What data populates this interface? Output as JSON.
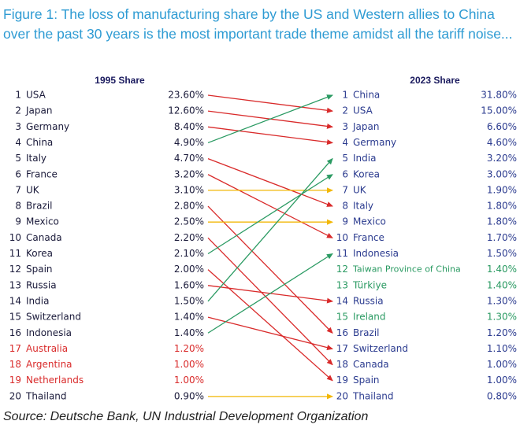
{
  "title": "Figure 1: The loss of manufacturing share by the US and Western allies to China over the past 30 years is the most important trade theme amidst all the tariff noise...",
  "source": "Source: Deutsche Bank, UN Industrial Development Organization",
  "colors": {
    "red": "#d92b2b",
    "green": "#2a9a62",
    "yellow": "#f2b705",
    "blue_text": "#2b3b8f",
    "dark_text": "#1a1a3a",
    "title": "#2e9bd3"
  },
  "chart_data": {
    "type": "table",
    "headers": {
      "left": "1995 Share",
      "right": "2023 Share"
    },
    "left": [
      {
        "rank": "1",
        "country": "USA",
        "value": "23.60%",
        "color": "dark"
      },
      {
        "rank": "2",
        "country": "Japan",
        "value": "12.60%",
        "color": "dark"
      },
      {
        "rank": "3",
        "country": "Germany",
        "value": "8.40%",
        "color": "dark"
      },
      {
        "rank": "4",
        "country": "China",
        "value": "4.90%",
        "color": "dark"
      },
      {
        "rank": "5",
        "country": "Italy",
        "value": "4.70%",
        "color": "dark"
      },
      {
        "rank": "6",
        "country": "France",
        "value": "3.20%",
        "color": "dark"
      },
      {
        "rank": "7",
        "country": "UK",
        "value": "3.10%",
        "color": "dark"
      },
      {
        "rank": "8",
        "country": "Brazil",
        "value": "2.80%",
        "color": "dark"
      },
      {
        "rank": "9",
        "country": "Mexico",
        "value": "2.50%",
        "color": "dark"
      },
      {
        "rank": "10",
        "country": "Canada",
        "value": "2.20%",
        "color": "dark"
      },
      {
        "rank": "11",
        "country": "Korea",
        "value": "2.10%",
        "color": "dark"
      },
      {
        "rank": "12",
        "country": "Spain",
        "value": "2.00%",
        "color": "dark"
      },
      {
        "rank": "13",
        "country": "Russia",
        "value": "1.60%",
        "color": "dark"
      },
      {
        "rank": "14",
        "country": "India",
        "value": "1.50%",
        "color": "dark"
      },
      {
        "rank": "15",
        "country": "Switzerland",
        "value": "1.40%",
        "color": "dark"
      },
      {
        "rank": "16",
        "country": "Indonesia",
        "value": "1.40%",
        "color": "dark"
      },
      {
        "rank": "17",
        "country": "Australia",
        "value": "1.20%",
        "color": "red"
      },
      {
        "rank": "18",
        "country": "Argentina",
        "value": "1.00%",
        "color": "red"
      },
      {
        "rank": "19",
        "country": "Netherlands",
        "value": "1.00%",
        "color": "red"
      },
      {
        "rank": "20",
        "country": "Thailand",
        "value": "0.90%",
        "color": "dark"
      }
    ],
    "right": [
      {
        "rank": "1",
        "country": "China",
        "value": "31.80%",
        "color": "blue"
      },
      {
        "rank": "2",
        "country": "USA",
        "value": "15.00%",
        "color": "blue"
      },
      {
        "rank": "3",
        "country": "Japan",
        "value": "6.60%",
        "color": "blue"
      },
      {
        "rank": "4",
        "country": "Germany",
        "value": "4.60%",
        "color": "blue"
      },
      {
        "rank": "5",
        "country": "India",
        "value": "3.20%",
        "color": "blue"
      },
      {
        "rank": "6",
        "country": "Korea",
        "value": "3.00%",
        "color": "blue"
      },
      {
        "rank": "7",
        "country": "UK",
        "value": "1.90%",
        "color": "blue"
      },
      {
        "rank": "8",
        "country": "Italy",
        "value": "1.80%",
        "color": "blue"
      },
      {
        "rank": "9",
        "country": "Mexico",
        "value": "1.80%",
        "color": "blue"
      },
      {
        "rank": "10",
        "country": "France",
        "value": "1.70%",
        "color": "blue"
      },
      {
        "rank": "11",
        "country": "Indonesia",
        "value": "1.50%",
        "color": "blue"
      },
      {
        "rank": "12",
        "country": "Taiwan Province of China",
        "value": "1.40%",
        "color": "green"
      },
      {
        "rank": "13",
        "country": "Türkiye",
        "value": "1.40%",
        "color": "green"
      },
      {
        "rank": "14",
        "country": "Russia",
        "value": "1.30%",
        "color": "blue"
      },
      {
        "rank": "15",
        "country": "Ireland",
        "value": "1.30%",
        "color": "green"
      },
      {
        "rank": "16",
        "country": "Brazil",
        "value": "1.20%",
        "color": "blue"
      },
      {
        "rank": "17",
        "country": "Switzerland",
        "value": "1.10%",
        "color": "blue"
      },
      {
        "rank": "18",
        "country": "Canada",
        "value": "1.00%",
        "color": "blue"
      },
      {
        "rank": "19",
        "country": "Spain",
        "value": "1.00%",
        "color": "blue"
      },
      {
        "rank": "20",
        "country": "Thailand",
        "value": "0.80%",
        "color": "blue"
      }
    ],
    "arrows": [
      {
        "from": 1,
        "to": 2,
        "color": "red"
      },
      {
        "from": 2,
        "to": 3,
        "color": "red"
      },
      {
        "from": 3,
        "to": 4,
        "color": "red"
      },
      {
        "from": 4,
        "to": 1,
        "color": "green"
      },
      {
        "from": 5,
        "to": 8,
        "color": "red"
      },
      {
        "from": 6,
        "to": 10,
        "color": "red"
      },
      {
        "from": 7,
        "to": 7,
        "color": "yellow"
      },
      {
        "from": 8,
        "to": 16,
        "color": "red"
      },
      {
        "from": 9,
        "to": 9,
        "color": "yellow"
      },
      {
        "from": 10,
        "to": 18,
        "color": "red"
      },
      {
        "from": 11,
        "to": 6,
        "color": "green"
      },
      {
        "from": 12,
        "to": 19,
        "color": "red"
      },
      {
        "from": 13,
        "to": 14,
        "color": "red"
      },
      {
        "from": 14,
        "to": 5,
        "color": "green"
      },
      {
        "from": 15,
        "to": 17,
        "color": "red"
      },
      {
        "from": 16,
        "to": 11,
        "color": "green"
      },
      {
        "from": 20,
        "to": 20,
        "color": "yellow"
      }
    ]
  }
}
